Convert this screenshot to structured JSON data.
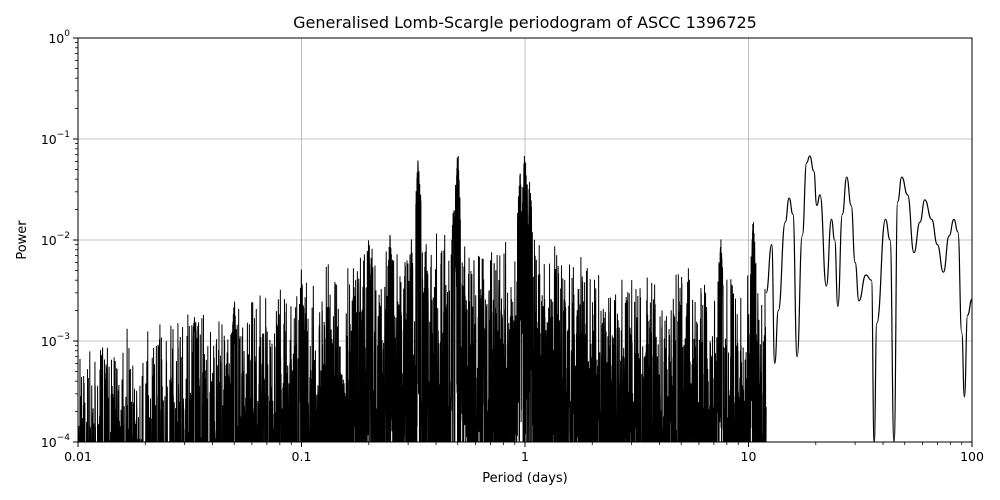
{
  "chart_data": {
    "type": "line",
    "title": "Generalised Lomb-Scargle periodogram of ASCC 1396725",
    "xlabel": "Period (days)",
    "ylabel": "Power",
    "xscale": "log",
    "yscale": "log",
    "xlim": [
      0.01,
      100
    ],
    "ylim": [
      0.0001,
      1
    ],
    "grid": true,
    "line_color": "#000000",
    "grid_color": "#b0b0b0",
    "x_ticks": [
      {
        "value": 0.01,
        "label": "0.01"
      },
      {
        "value": 0.1,
        "label": "0.1"
      },
      {
        "value": 1,
        "label": "1"
      },
      {
        "value": 10,
        "label": "10"
      },
      {
        "value": 100,
        "label": "100"
      }
    ],
    "y_ticks": [
      {
        "value": 0.0001,
        "base": "10",
        "exp": "−4"
      },
      {
        "value": 0.001,
        "base": "10",
        "exp": "−3"
      },
      {
        "value": 0.01,
        "base": "10",
        "exp": "−2"
      },
      {
        "value": 0.1,
        "base": "10",
        "exp": "−1"
      },
      {
        "value": 1,
        "base": "10",
        "exp": "0"
      }
    ],
    "series": [
      {
        "envelope": [
          [
            0.01,
            0.0008
          ],
          [
            0.013,
            0.0012
          ],
          [
            0.02,
            0.0015
          ],
          [
            0.03,
            0.002
          ],
          [
            0.05,
            0.0025
          ],
          [
            0.08,
            0.004
          ],
          [
            0.12,
            0.006
          ],
          [
            0.2,
            0.009
          ],
          [
            0.3,
            0.012
          ],
          [
            0.5,
            0.012
          ],
          [
            0.8,
            0.012
          ],
          [
            1.2,
            0.012
          ],
          [
            2,
            0.008
          ],
          [
            4,
            0.006
          ],
          [
            7,
            0.006
          ],
          [
            12,
            0.005
          ]
        ],
        "peaks": [
          [
            0.0333,
            0.0025
          ],
          [
            0.05,
            0.0035
          ],
          [
            0.1,
            0.006
          ],
          [
            0.2,
            0.013
          ],
          [
            0.25,
            0.016
          ],
          [
            0.333,
            0.075
          ],
          [
            0.5,
            0.085
          ],
          [
            0.48,
            0.025
          ],
          [
            0.95,
            0.05
          ],
          [
            1.0,
            0.09
          ],
          [
            1.05,
            0.045
          ],
          [
            7.5,
            0.013
          ],
          [
            10.5,
            0.018
          ]
        ],
        "smooth": [
          [
            12,
            0.003
          ],
          [
            12.7,
            0.009
          ],
          [
            13.1,
            0.0006
          ],
          [
            13.6,
            0.002
          ],
          [
            14.6,
            0.015
          ],
          [
            15.2,
            0.026
          ],
          [
            15.8,
            0.018
          ],
          [
            16.5,
            0.0007
          ],
          [
            17.4,
            0.011
          ],
          [
            18.2,
            0.058
          ],
          [
            18.8,
            0.068
          ],
          [
            19.6,
            0.048
          ],
          [
            20.2,
            0.022
          ],
          [
            20.9,
            0.028
          ],
          [
            22.3,
            0.0035
          ],
          [
            23.5,
            0.016
          ],
          [
            24.3,
            0.01
          ],
          [
            25.1,
            0.0022
          ],
          [
            26.3,
            0.018
          ],
          [
            27.5,
            0.042
          ],
          [
            28.8,
            0.022
          ],
          [
            30,
            0.006
          ],
          [
            31.2,
            0.0025
          ],
          [
            33.5,
            0.0045
          ],
          [
            35.5,
            0.004
          ],
          [
            36.5,
            0.0001
          ],
          [
            37.5,
            0.0015
          ],
          [
            41,
            0.016
          ],
          [
            43,
            0.01
          ],
          [
            44.8,
            0.0001
          ],
          [
            46.5,
            0.024
          ],
          [
            48.5,
            0.042
          ],
          [
            51.5,
            0.028
          ],
          [
            55,
            0.0075
          ],
          [
            58.5,
            0.015
          ],
          [
            61.5,
            0.025
          ],
          [
            66,
            0.016
          ],
          [
            70,
            0.009
          ],
          [
            74.5,
            0.0048
          ],
          [
            79,
            0.011
          ],
          [
            83,
            0.016
          ],
          [
            86.5,
            0.012
          ],
          [
            90,
            0.0012
          ],
          [
            92.5,
            0.00028
          ],
          [
            95.5,
            0.0018
          ],
          [
            100,
            0.0026
          ]
        ]
      }
    ]
  }
}
